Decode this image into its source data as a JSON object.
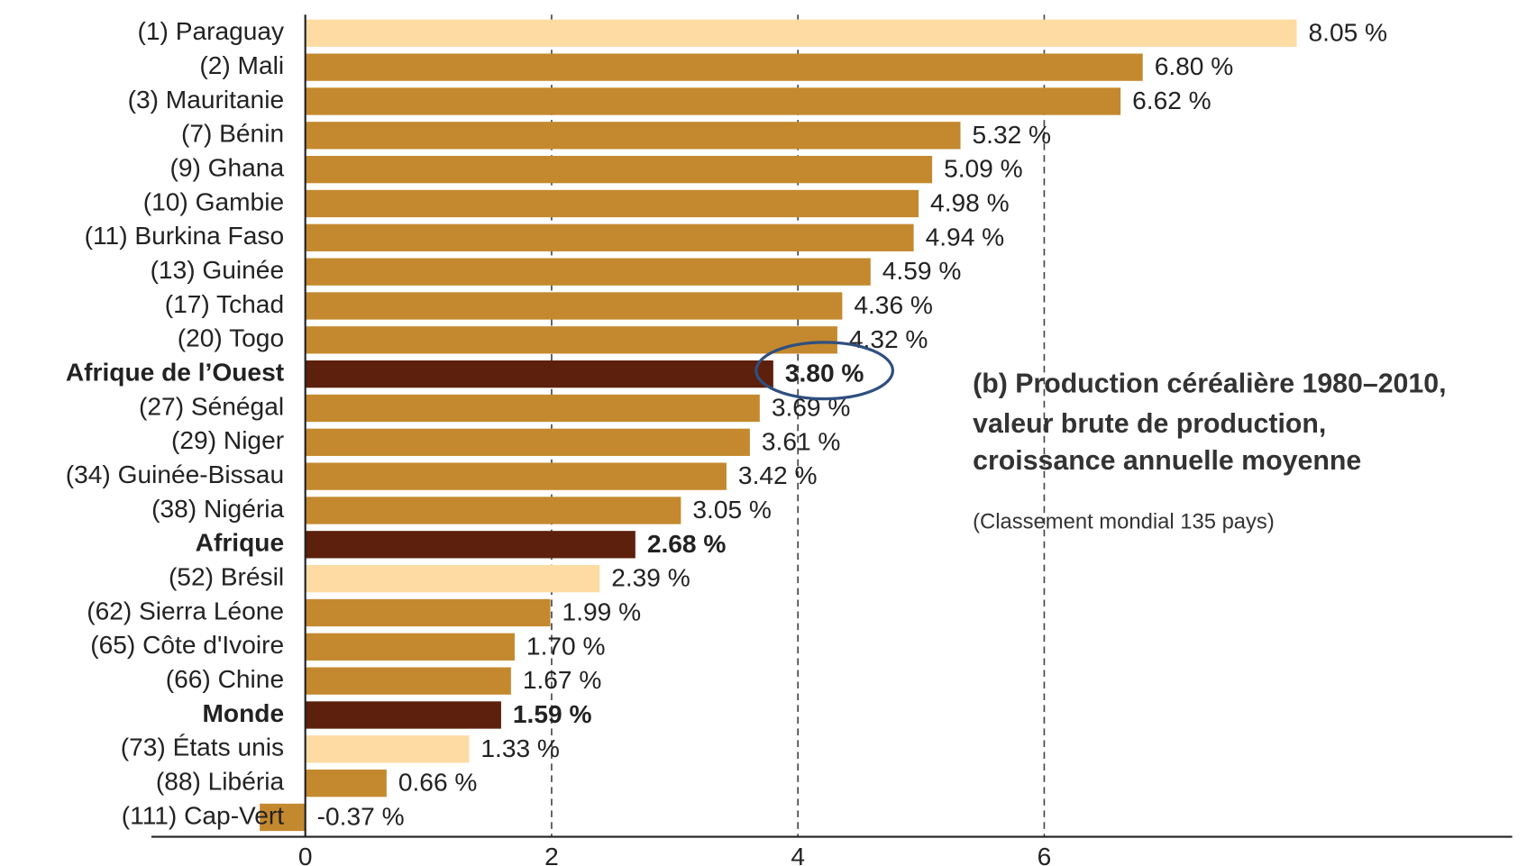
{
  "chart_data": {
    "type": "barh",
    "title": [
      "(b) Production céréalière 1980–2010,",
      "valeur brute de production,",
      "croissance annuelle moyenne"
    ],
    "subtitle": "(Classement mondial 135 pays)",
    "categories": [
      "(1) Paraguay",
      "(2) Mali",
      "(3) Mauritanie",
      "(7) Bénin",
      "(9) Ghana",
      "(10) Gambie",
      "(11) Burkina Faso",
      "(13) Guinée",
      "(17) Tchad",
      "(20) Togo",
      "Afrique de l’Ouest",
      "(27) Sénégal",
      "(29) Niger",
      "(34) Guinée-Bissau",
      "(38) Nigéria",
      "Afrique",
      "(52) Brésil",
      "(62) Sierra Léone",
      "(65) Côte d'Ivoire",
      "(66) Chine",
      "Monde",
      "(73) États unis",
      "(88) Libéria",
      "(111) Cap-Vert"
    ],
    "values": [
      8.05,
      6.8,
      6.62,
      5.32,
      5.09,
      4.98,
      4.94,
      4.59,
      4.36,
      4.32,
      3.8,
      3.69,
      3.61,
      3.42,
      3.05,
      2.68,
      2.39,
      1.99,
      1.7,
      1.67,
      1.59,
      1.33,
      0.66,
      -0.37
    ],
    "value_labels": [
      "8.05 %",
      "6.80 %",
      "6.62 %",
      "5.32 %",
      "5.09 %",
      "4.98 %",
      "4.94 %",
      "4.59 %",
      "4.36 %",
      "4.32 %",
      "3.80 %",
      "3.69 %",
      "3.61 %",
      "3.42 %",
      "3.05 %",
      "2.68 %",
      "2.39 %",
      "1.99 %",
      "1.70 %",
      "1.67 %",
      "1.59 %",
      "1.33 %",
      "0.66 %",
      "-0.37 %"
    ],
    "colors": [
      "#fddba3",
      "#c4892e",
      "#c4892e",
      "#c4892e",
      "#c4892e",
      "#c4892e",
      "#c4892e",
      "#c4892e",
      "#c4892e",
      "#c4892e",
      "#5c200c",
      "#c4892e",
      "#c4892e",
      "#c4892e",
      "#c4892e",
      "#5c200c",
      "#fddba3",
      "#c4892e",
      "#c4892e",
      "#c4892e",
      "#5c200c",
      "#fddba3",
      "#c4892e",
      "#c4892e"
    ],
    "xlim": [
      -1.25,
      9.8
    ],
    "xticks": [
      0,
      2,
      4,
      6
    ],
    "grid": true
  }
}
